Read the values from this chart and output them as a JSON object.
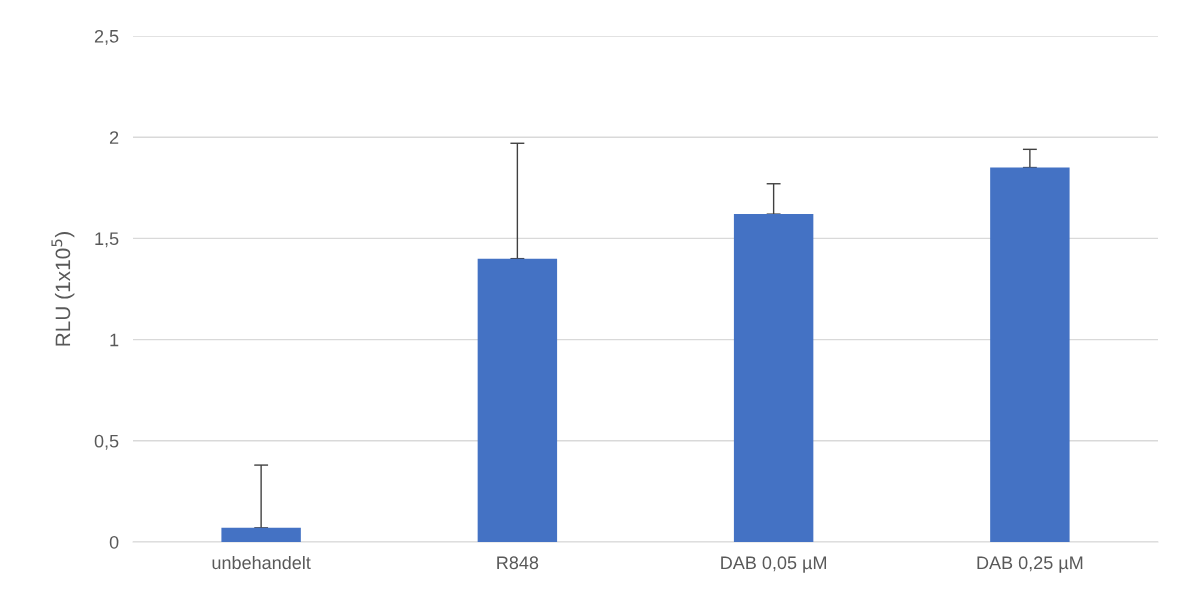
{
  "chart_data": {
    "type": "bar",
    "ylabel": "RLU (1x10$^{5}$)",
    "categories": [
      "unbehandelt",
      "R848",
      "DAB 0,05 µM",
      "DAB 0,25 µM"
    ],
    "values": [
      0.07,
      1.4,
      1.62,
      1.85
    ],
    "errors": [
      [
        0.07,
        0.38
      ],
      [
        1.4,
        1.97
      ],
      [
        1.62,
        1.77
      ],
      [
        1.85,
        1.94
      ]
    ],
    "color": "#4472c4",
    "ylim": [
      0,
      2.5
    ],
    "yticks": [
      0,
      {
        "value": 0.5,
        "label": "0,5"
      },
      1,
      {
        "value": 1.5,
        "label": "1,5"
      },
      2,
      {
        "value": 2.5,
        "label": "2,5"
      }
    ],
    "grid": "y"
  }
}
